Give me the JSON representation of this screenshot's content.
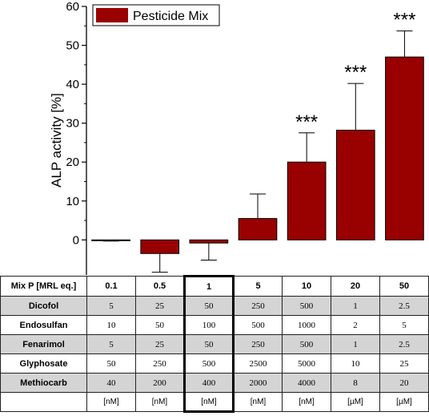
{
  "chart_data": {
    "type": "bar",
    "ylabel": "ALP activity [%]",
    "ylim": [
      -9,
      60
    ],
    "yticks": [
      0,
      10,
      20,
      30,
      40,
      50,
      60
    ],
    "categories": [
      "0.1",
      "0.5",
      "1",
      "5",
      "10",
      "20",
      "50"
    ],
    "series": [
      {
        "name": "Pesticide Mix",
        "values": [
          -0.2,
          -3.5,
          -0.8,
          5.5,
          20,
          28.2,
          47
        ],
        "errors": [
          0.1,
          4.8,
          4.4,
          6.3,
          7.5,
          12,
          6.7
        ]
      }
    ],
    "annotations": [
      "",
      "",
      "",
      "",
      "***",
      "***",
      "***"
    ],
    "legend": "top-left",
    "grid": false,
    "bar_color": "#990000"
  },
  "table": {
    "header_label": "Mix P [MRL eq.]",
    "header": [
      "0.1",
      "0.5",
      "1",
      "5",
      "10",
      "20",
      "50"
    ],
    "rows": [
      {
        "label": "Dicofol",
        "values": [
          "5",
          "25",
          "50",
          "250",
          "500",
          "1",
          "2.5"
        ]
      },
      {
        "label": "Endosulfan",
        "values": [
          "10",
          "50",
          "100",
          "500",
          "1000",
          "2",
          "5"
        ]
      },
      {
        "label": "Fenarimol",
        "values": [
          "5",
          "25",
          "50",
          "250",
          "500",
          "1",
          "2.5"
        ]
      },
      {
        "label": "Glyphosate",
        "values": [
          "50",
          "250",
          "500",
          "2500",
          "5000",
          "10",
          "25"
        ]
      },
      {
        "label": "Methiocarb",
        "values": [
          "40",
          "200",
          "400",
          "2000",
          "4000",
          "8",
          "20"
        ]
      }
    ],
    "units": [
      "[nM]",
      "[nM]",
      "[nM]",
      "[nM]",
      "[nM]",
      "[µM]",
      "[µM]"
    ]
  }
}
